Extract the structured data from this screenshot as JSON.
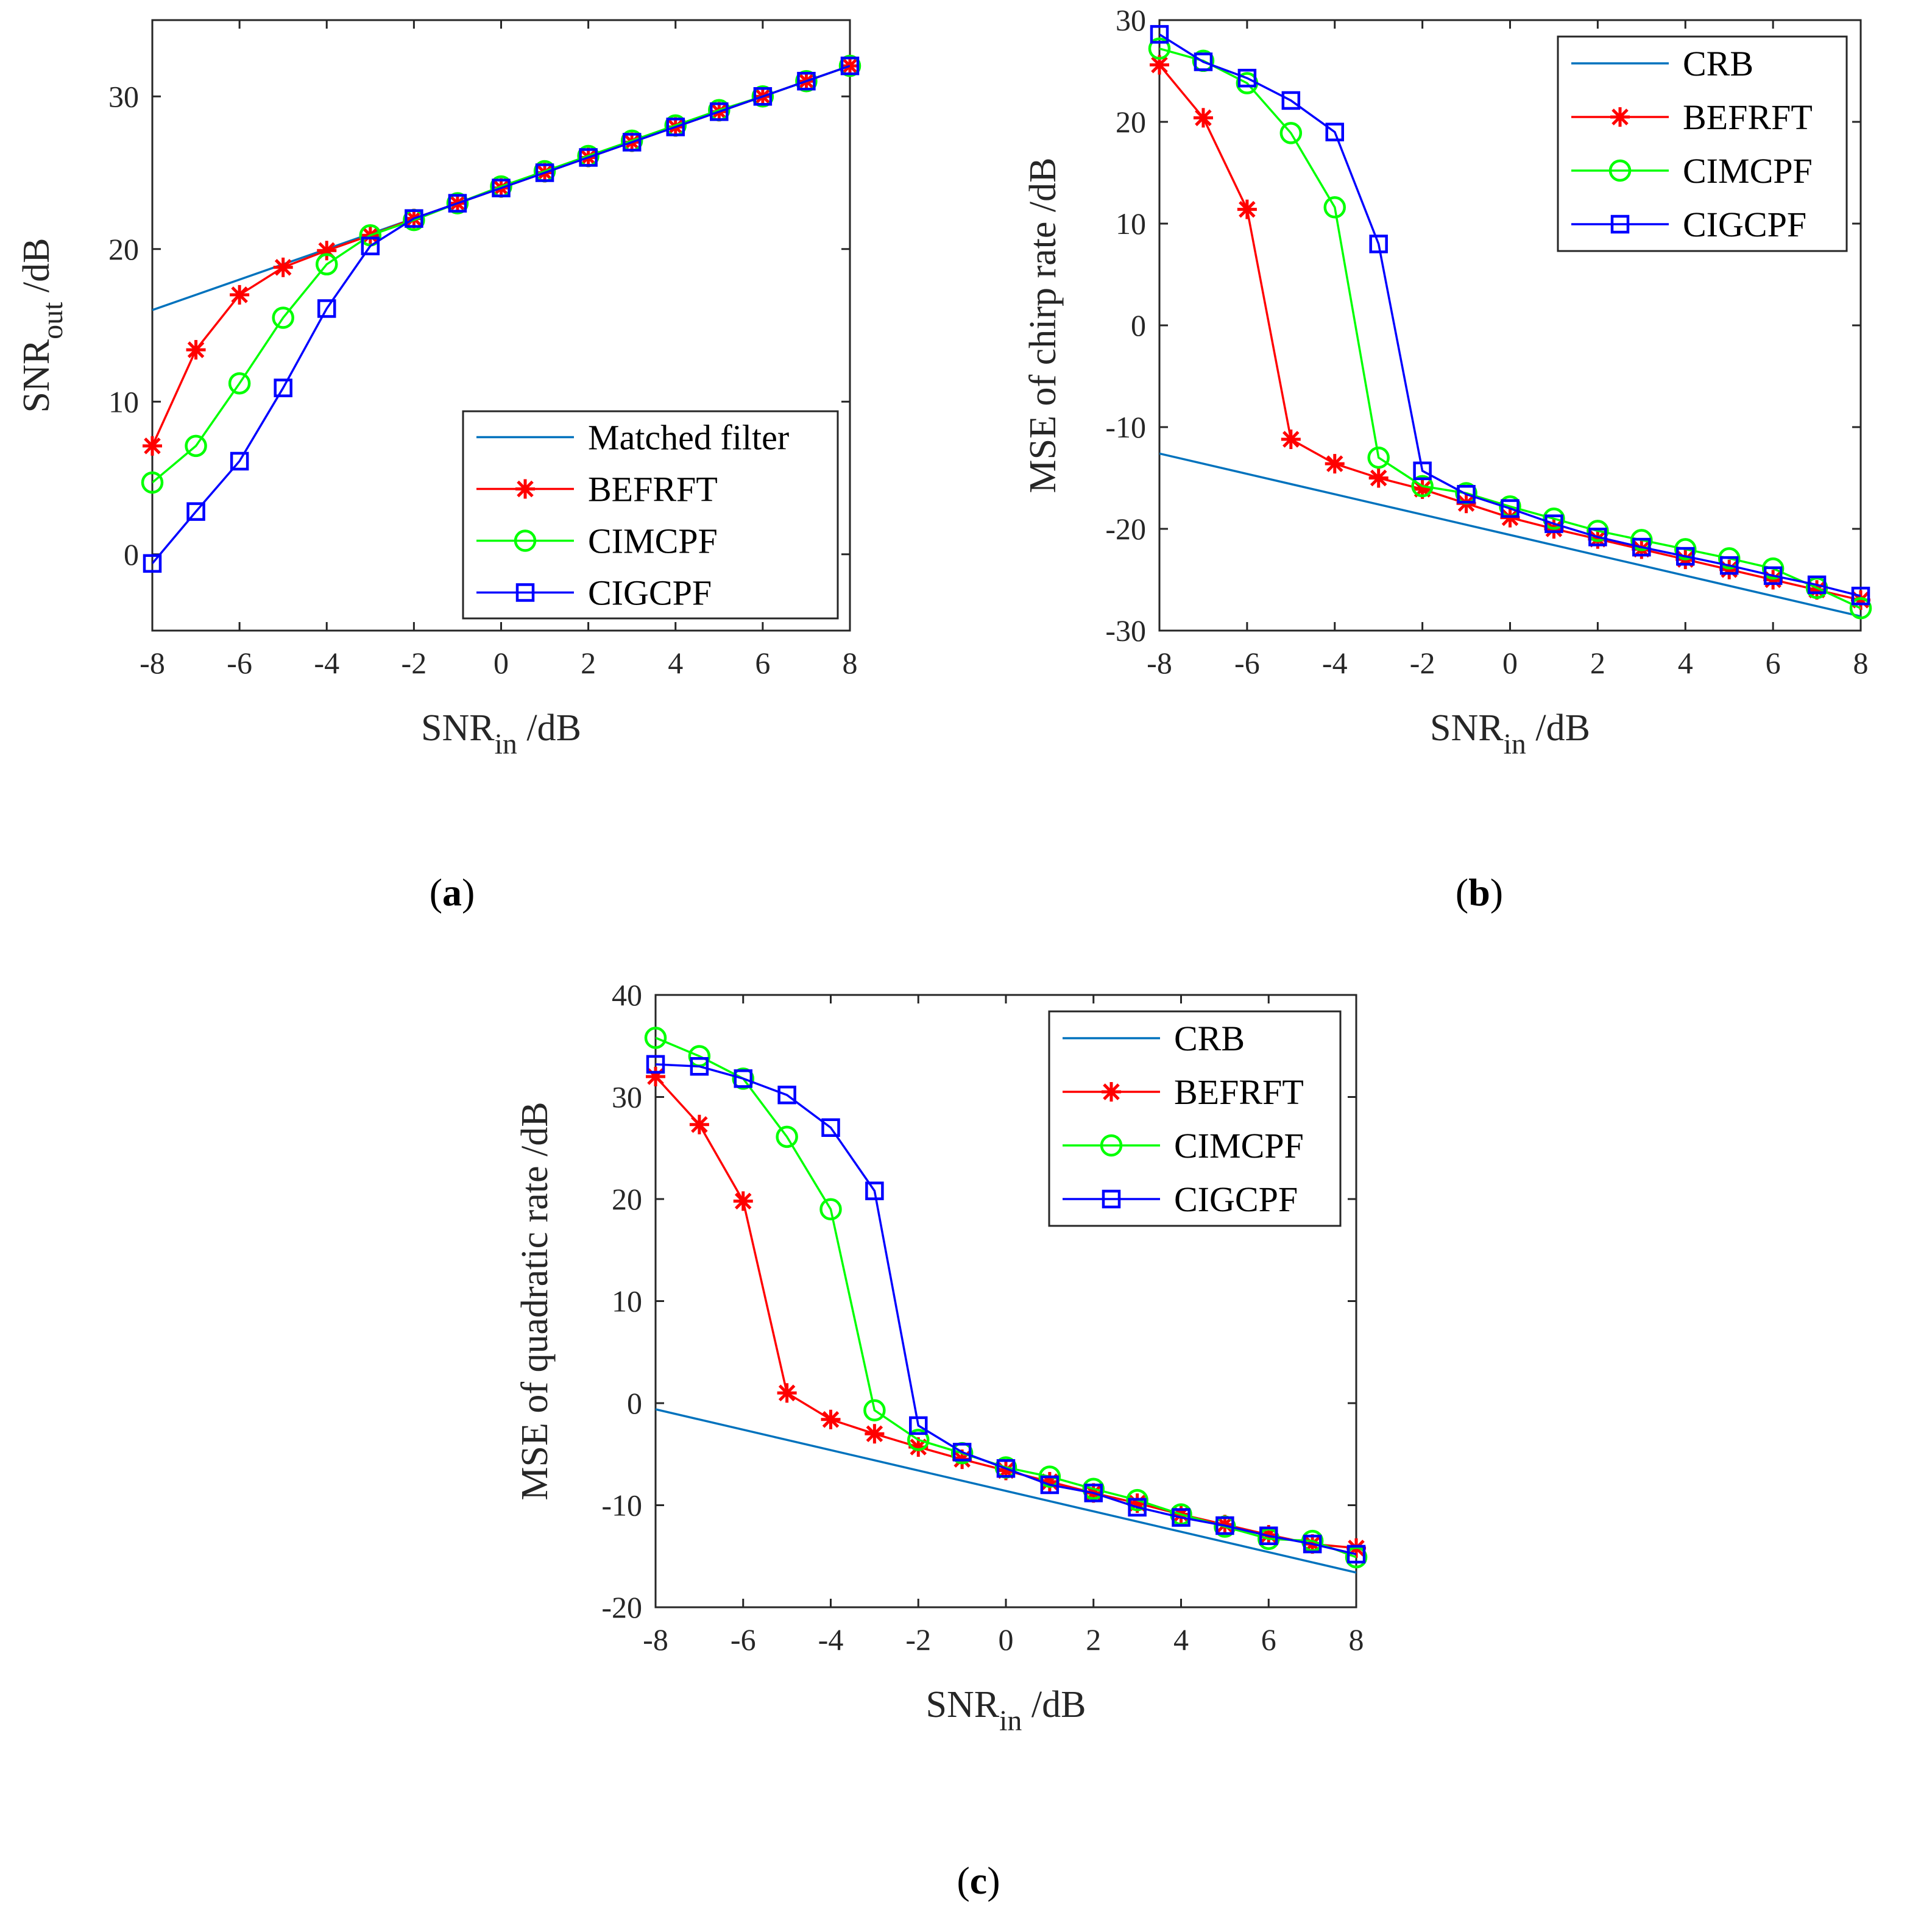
{
  "figure": {
    "captions": [
      "a",
      "b",
      "c"
    ]
  },
  "styles": {
    "Matched filter": {
      "color": "#0072BD",
      "marker": "none"
    },
    "CRB": {
      "color": "#0072BD",
      "marker": "none"
    },
    "BEFRFT": {
      "color": "#FF0000",
      "marker": "star"
    },
    "CIMCPF": {
      "color": "#00FF00",
      "marker": "circle"
    },
    "CIGCPF": {
      "color": "#0000FF",
      "marker": "square"
    }
  },
  "chart_data": [
    {
      "id": "a",
      "type": "line",
      "xlabel_main": "SNR",
      "xlabel_sub": "in",
      "xlabel_suffix": " /dB",
      "ylabel_main": "SNR",
      "ylabel_sub": "out",
      "ylabel_suffix": " /dB",
      "xlim": [
        -8,
        8
      ],
      "ylim": [
        -5,
        35
      ],
      "xticks": [
        -8,
        -6,
        -4,
        -2,
        0,
        2,
        4,
        6,
        8
      ],
      "yticks": [
        0,
        10,
        20,
        30
      ],
      "legend_position": "bottom-right",
      "x": [
        -8,
        -7,
        -6,
        -5,
        -4,
        -3,
        -2,
        -1,
        0,
        1,
        2,
        3,
        4,
        5,
        6,
        7,
        8
      ],
      "series": [
        {
          "name": "Matched filter",
          "values": [
            16.0,
            17.0,
            18.0,
            19.0,
            20.0,
            21.0,
            22.0,
            23.0,
            24.0,
            25.0,
            26.0,
            27.0,
            28.0,
            29.0,
            30.0,
            31.0,
            32.0
          ]
        },
        {
          "name": "BEFRFT",
          "values": [
            7.1,
            13.4,
            17.0,
            18.8,
            19.9,
            20.9,
            22.0,
            23.0,
            24.0,
            25.0,
            26.0,
            27.0,
            28.0,
            29.0,
            30.0,
            31.0,
            32.0
          ]
        },
        {
          "name": "CIMCPF",
          "values": [
            4.7,
            7.1,
            11.2,
            15.5,
            19.0,
            20.9,
            21.9,
            23.0,
            24.1,
            25.1,
            26.1,
            27.1,
            28.1,
            29.1,
            30.0,
            31.0,
            32.0
          ]
        },
        {
          "name": "CIGCPF",
          "values": [
            -0.6,
            2.8,
            6.1,
            10.9,
            16.1,
            20.2,
            22.0,
            23.0,
            24.0,
            25.0,
            26.0,
            27.0,
            28.0,
            29.0,
            30.0,
            31.0,
            32.0
          ]
        }
      ]
    },
    {
      "id": "b",
      "type": "line",
      "xlabel_main": "SNR",
      "xlabel_sub": "in",
      "xlabel_suffix": " /dB",
      "ylabel_main": "MSE of chirp rate /dB",
      "ylabel_sub": "",
      "ylabel_suffix": "",
      "xlim": [
        -8,
        8
      ],
      "ylim": [
        -30,
        30
      ],
      "xticks": [
        -8,
        -6,
        -4,
        -2,
        0,
        2,
        4,
        6,
        8
      ],
      "yticks": [
        -30,
        -20,
        -10,
        0,
        10,
        20,
        30
      ],
      "legend_position": "top-right",
      "x": [
        -8,
        -7,
        -6,
        -5,
        -4,
        -3,
        -2,
        -1,
        0,
        1,
        2,
        3,
        4,
        5,
        6,
        7,
        8
      ],
      "series": [
        {
          "name": "CRB",
          "values": [
            -12.6,
            -13.6,
            -14.6,
            -15.6,
            -16.6,
            -17.6,
            -18.6,
            -19.6,
            -20.6,
            -21.6,
            -22.6,
            -23.6,
            -24.6,
            -25.6,
            -26.6,
            -27.6,
            -28.6
          ]
        },
        {
          "name": "BEFRFT",
          "values": [
            25.6,
            20.4,
            11.4,
            -11.2,
            -13.6,
            -15.0,
            -16.1,
            -17.5,
            -18.9,
            -20.0,
            -21.0,
            -22.0,
            -23.0,
            -24.0,
            -25.0,
            -26.0,
            -27.0
          ]
        },
        {
          "name": "CIMCPF",
          "values": [
            27.2,
            26.0,
            23.8,
            18.9,
            11.6,
            -13.0,
            -15.8,
            -16.5,
            -17.8,
            -19.0,
            -20.2,
            -21.1,
            -22.0,
            -22.9,
            -23.9,
            -25.8,
            -27.8
          ]
        },
        {
          "name": "CIGCPF",
          "values": [
            28.6,
            25.9,
            24.3,
            22.1,
            19.0,
            8.0,
            -14.3,
            -16.6,
            -18.0,
            -19.5,
            -20.8,
            -21.8,
            -22.7,
            -23.6,
            -24.6,
            -25.5,
            -26.6
          ]
        }
      ]
    },
    {
      "id": "c",
      "type": "line",
      "xlabel_main": "SNR",
      "xlabel_sub": "in",
      "xlabel_suffix": " /dB",
      "ylabel_main": "MSE of quadratic rate /dB",
      "ylabel_sub": "",
      "ylabel_suffix": "",
      "xlim": [
        -8,
        8
      ],
      "ylim": [
        -20,
        40
      ],
      "xticks": [
        -8,
        -6,
        -4,
        -2,
        0,
        2,
        4,
        6,
        8
      ],
      "yticks": [
        -20,
        -10,
        0,
        10,
        20,
        30,
        40
      ],
      "legend_position": "top-right",
      "x": [
        -8,
        -7,
        -6,
        -5,
        -4,
        -3,
        -2,
        -1,
        0,
        1,
        2,
        3,
        4,
        5,
        6,
        7,
        8
      ],
      "series": [
        {
          "name": "CRB",
          "values": [
            -0.6,
            -1.6,
            -2.6,
            -3.6,
            -4.6,
            -5.6,
            -6.6,
            -7.6,
            -8.6,
            -9.6,
            -10.6,
            -11.6,
            -12.6,
            -13.6,
            -14.6,
            -15.6,
            -16.6
          ]
        },
        {
          "name": "BEFRFT",
          "values": [
            32.0,
            27.3,
            19.8,
            1.0,
            -1.6,
            -3.0,
            -4.3,
            -5.5,
            -6.6,
            -7.7,
            -8.8,
            -9.8,
            -10.9,
            -11.9,
            -12.9,
            -13.8,
            -14.2
          ]
        },
        {
          "name": "CIMCPF",
          "values": [
            35.8,
            34.0,
            31.8,
            26.1,
            19.0,
            -0.7,
            -3.6,
            -4.9,
            -6.3,
            -7.2,
            -8.4,
            -9.5,
            -10.9,
            -12.1,
            -13.3,
            -13.5,
            -15.1
          ]
        },
        {
          "name": "CIGCPF",
          "values": [
            33.2,
            33.0,
            31.8,
            30.2,
            27.0,
            20.8,
            -2.2,
            -4.8,
            -6.4,
            -8.0,
            -8.8,
            -10.2,
            -11.2,
            -12.0,
            -13.0,
            -13.8,
            -14.8
          ]
        }
      ]
    }
  ]
}
